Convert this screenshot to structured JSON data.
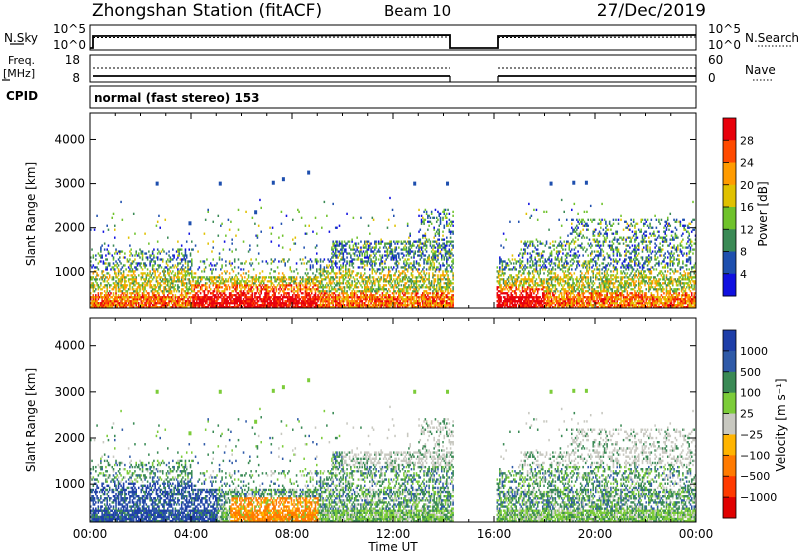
{
  "header": {
    "station": "Zhongshan Station (fitACF)",
    "beam": "Beam 10",
    "date": "27/Dec/2019",
    "cpid_label": "CPID",
    "cpid_value": "normal (fast stereo) 153"
  },
  "top_panel": {
    "left_label": "N.Sky",
    "right_label": "N.Search",
    "left_ticks": [
      "10^5",
      "10^0"
    ],
    "right_ticks": [
      "10^5",
      "10^0"
    ]
  },
  "freq_panel": {
    "left_label_1": "Freq.",
    "left_label_2": "[MHz]",
    "right_label": "Nave",
    "left_ticks": [
      "18",
      "8"
    ],
    "right_ticks": [
      "60",
      "0"
    ]
  },
  "panels": {
    "y_label": "Slant Range [km]",
    "y_ticks": [
      "4000",
      "3000",
      "2000",
      "1000"
    ],
    "x_ticks": [
      "00:00",
      "04:00",
      "08:00",
      "12:00",
      "16:00",
      "20:00",
      "00:00"
    ],
    "x_label": "Time UT"
  },
  "power_scale": {
    "label": "Power [dB]",
    "ticks": [
      "28",
      "24",
      "20",
      "16",
      "12",
      "8",
      "4"
    ],
    "colors": [
      "#e8000b",
      "#ff4a00",
      "#ff9b00",
      "#e0c100",
      "#6fc22b",
      "#3a8a55",
      "#1e4fae",
      "#1010e0"
    ]
  },
  "velocity_scale": {
    "label": "Velocity [m s⁻¹]",
    "ticks": [
      "1000",
      "500",
      "100",
      "25",
      "−25",
      "−100",
      "−500",
      "−1000"
    ],
    "colors": [
      "#1e3ea8",
      "#2f5aa8",
      "#3a8a55",
      "#7ccc39",
      "#c8c8c0",
      "#ffb400",
      "#ff7a00",
      "#ff3a00",
      "#e00000"
    ]
  },
  "chart_data": {
    "type": "heatmap",
    "x_range_ut_hours": [
      0,
      24
    ],
    "y_range_km": [
      180,
      4600
    ],
    "data_gap_ut_hours": [
      14.4,
      16.1
    ],
    "power_scale_db": [
      0,
      32
    ],
    "velocity_scale_ms": [
      -1250,
      1250
    ]
  }
}
